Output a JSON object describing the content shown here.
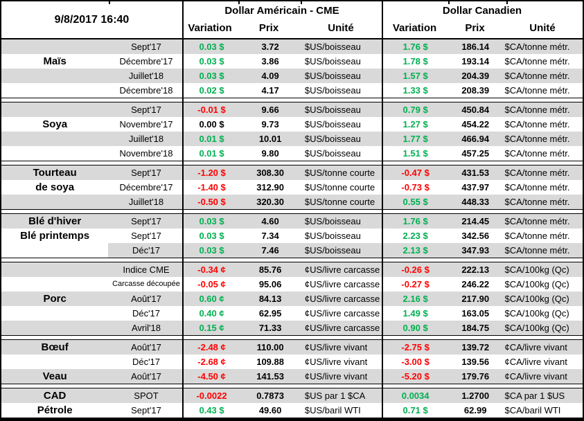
{
  "header": {
    "date": "9/8/2017 16:40",
    "us_title": "Dollar Américain - CME",
    "ca_title": "Dollar Canadien",
    "columns": {
      "variation": "Variation",
      "prix": "Prix",
      "unite": "Unité"
    }
  },
  "colors": {
    "positive": "#00B050",
    "negative": "#FF0000",
    "neutral": "#000000",
    "row_shade": "#D9D9D9"
  },
  "sections": [
    {
      "rows": [
        {
          "commodity": "",
          "contract": "Sept'17",
          "shade": "gray",
          "us": {
            "variation": "0.03 $",
            "color": "positive",
            "prix": "3.72",
            "unit": "$US/boisseau"
          },
          "ca": {
            "variation": "1.76 $",
            "color": "positive",
            "prix": "186.14",
            "unit": "$CA/tonne métr."
          }
        },
        {
          "commodity": "Maïs",
          "contract": "Décembre'17",
          "shade": "white",
          "us": {
            "variation": "0.03 $",
            "color": "positive",
            "prix": "3.86",
            "unit": "$US/boisseau"
          },
          "ca": {
            "variation": "1.78 $",
            "color": "positive",
            "prix": "193.14",
            "unit": "$CA/tonne métr."
          }
        },
        {
          "commodity": "",
          "contract": "Juillet'18",
          "shade": "gray",
          "us": {
            "variation": "0.03 $",
            "color": "positive",
            "prix": "4.09",
            "unit": "$US/boisseau"
          },
          "ca": {
            "variation": "1.57 $",
            "color": "positive",
            "prix": "204.39",
            "unit": "$CA/tonne métr."
          }
        },
        {
          "commodity": "",
          "contract": "Décembre'18",
          "shade": "white",
          "us": {
            "variation": "0.02 $",
            "color": "positive",
            "prix": "4.17",
            "unit": "$US/boisseau"
          },
          "ca": {
            "variation": "1.33 $",
            "color": "positive",
            "prix": "208.39",
            "unit": "$CA/tonne métr."
          }
        }
      ]
    },
    {
      "rows": [
        {
          "commodity": "",
          "contract": "Sept'17",
          "shade": "gray",
          "us": {
            "variation": "-0.01 $",
            "color": "negative",
            "prix": "9.66",
            "unit": "$US/boisseau"
          },
          "ca": {
            "variation": "0.79 $",
            "color": "positive",
            "prix": "450.84",
            "unit": "$CA/tonne métr."
          }
        },
        {
          "commodity": "Soya",
          "contract": "Novembre'17",
          "shade": "white",
          "us": {
            "variation": "0.00 $",
            "color": "neutral",
            "prix": "9.73",
            "unit": "$US/boisseau"
          },
          "ca": {
            "variation": "1.27 $",
            "color": "positive",
            "prix": "454.22",
            "unit": "$CA/tonne métr."
          }
        },
        {
          "commodity": "",
          "contract": "Juillet'18",
          "shade": "gray",
          "us": {
            "variation": "0.01 $",
            "color": "positive",
            "prix": "10.01",
            "unit": "$US/boisseau"
          },
          "ca": {
            "variation": "1.77 $",
            "color": "positive",
            "prix": "466.94",
            "unit": "$CA/tonne métr."
          }
        },
        {
          "commodity": "",
          "contract": "Novembre'18",
          "shade": "white",
          "us": {
            "variation": "0.01 $",
            "color": "positive",
            "prix": "9.80",
            "unit": "$US/boisseau"
          },
          "ca": {
            "variation": "1.51 $",
            "color": "positive",
            "prix": "457.25",
            "unit": "$CA/tonne métr."
          }
        }
      ]
    },
    {
      "rows": [
        {
          "commodity": "Tourteau",
          "contract": "Sept'17",
          "shade": "gray",
          "us": {
            "variation": "-1.20 $",
            "color": "negative",
            "prix": "308.30",
            "unit": "$US/tonne courte"
          },
          "ca": {
            "variation": "-0.47 $",
            "color": "negative",
            "prix": "431.53",
            "unit": "$CA/tonne métr."
          }
        },
        {
          "commodity": "de soya",
          "contract": "Décembre'17",
          "shade": "white",
          "us": {
            "variation": "-1.40 $",
            "color": "negative",
            "prix": "312.90",
            "unit": "$US/tonne courte"
          },
          "ca": {
            "variation": "-0.73 $",
            "color": "negative",
            "prix": "437.97",
            "unit": "$CA/tonne métr."
          }
        },
        {
          "commodity": "",
          "contract": "Juillet'18",
          "shade": "gray",
          "us": {
            "variation": "-0.50 $",
            "color": "negative",
            "prix": "320.30",
            "unit": "$US/tonne courte"
          },
          "ca": {
            "variation": "0.55 $",
            "color": "positive",
            "prix": "448.33",
            "unit": "$CA/tonne métr."
          }
        }
      ]
    },
    {
      "rows": [
        {
          "commodity": "Blé d'hiver",
          "contract": "Sept'17",
          "shade": "gray",
          "us": {
            "variation": "0.03 $",
            "color": "positive",
            "prix": "4.60",
            "unit": "$US/boisseau"
          },
          "ca": {
            "variation": "1.76 $",
            "color": "positive",
            "prix": "214.45",
            "unit": "$CA/tonne métr."
          }
        },
        {
          "commodity": "Blé printemps",
          "contract": "Sept'17",
          "shade": "white",
          "us": {
            "variation": "0.03 $",
            "color": "positive",
            "prix": "7.34",
            "unit": "$US/boisseau"
          },
          "ca": {
            "variation": "2.23 $",
            "color": "positive",
            "prix": "342.56",
            "unit": "$CA/tonne métr."
          }
        },
        {
          "commodity": "",
          "contract": "Déc'17",
          "shade": "partial",
          "us": {
            "variation": "0.03 $",
            "color": "positive",
            "prix": "7.46",
            "unit": "$US/boisseau"
          },
          "ca": {
            "variation": "2.13 $",
            "color": "positive",
            "prix": "347.93",
            "unit": "$CA/tonne métr."
          }
        }
      ]
    },
    {
      "rows": [
        {
          "commodity": "",
          "contract": "Indice CME",
          "shade": "gray",
          "us": {
            "variation": "-0.34 ¢",
            "color": "negative",
            "prix": "85.76",
            "unit": "¢US/livre carcasse"
          },
          "ca": {
            "variation": "-0.26 $",
            "color": "negative",
            "prix": "222.13",
            "unit": "$CA/100kg (Qc)"
          }
        },
        {
          "commodity": "",
          "contract": "Carcasse découpée",
          "contract_small": true,
          "shade": "white",
          "us": {
            "variation": "-0.05 ¢",
            "color": "negative",
            "prix": "95.06",
            "unit": "¢US/livre carcasse"
          },
          "ca": {
            "variation": "-0.27 $",
            "color": "negative",
            "prix": "246.22",
            "unit": "$CA/100kg (Qc)"
          }
        },
        {
          "commodity": "Porc",
          "contract": "Août'17",
          "shade": "gray",
          "us": {
            "variation": "0.60 ¢",
            "color": "positive",
            "prix": "84.13",
            "unit": "¢US/livre carcasse"
          },
          "ca": {
            "variation": "2.16 $",
            "color": "positive",
            "prix": "217.90",
            "unit": "$CA/100kg (Qc)"
          }
        },
        {
          "commodity": "",
          "contract": "Déc'17",
          "shade": "white",
          "us": {
            "variation": "0.40 ¢",
            "color": "positive",
            "prix": "62.95",
            "unit": "¢US/livre carcasse"
          },
          "ca": {
            "variation": "1.49 $",
            "color": "positive",
            "prix": "163.05",
            "unit": "$CA/100kg (Qc)"
          }
        },
        {
          "commodity": "",
          "contract": "Avril'18",
          "shade": "gray",
          "us": {
            "variation": "0.15 ¢",
            "color": "positive",
            "prix": "71.33",
            "unit": "¢US/livre carcasse"
          },
          "ca": {
            "variation": "0.90 $",
            "color": "positive",
            "prix": "184.75",
            "unit": "$CA/100kg (Qc)"
          }
        }
      ]
    },
    {
      "rows": [
        {
          "commodity": "Bœuf",
          "contract": "Août'17",
          "shade": "gray",
          "us": {
            "variation": "-2.48 ¢",
            "color": "negative",
            "prix": "110.00",
            "unit": "¢US/livre vivant"
          },
          "ca": {
            "variation": "-2.75 $",
            "color": "negative",
            "prix": "139.72",
            "unit": "¢CA/livre vivant"
          }
        },
        {
          "commodity": "",
          "contract": "Déc'17",
          "shade": "white",
          "us": {
            "variation": "-2.68 ¢",
            "color": "negative",
            "prix": "109.88",
            "unit": "¢US/livre vivant"
          },
          "ca": {
            "variation": "-3.00 $",
            "color": "negative",
            "prix": "139.56",
            "unit": "¢CA/livre vivant"
          }
        },
        {
          "commodity": "Veau",
          "contract": "Août'17",
          "shade": "gray",
          "us": {
            "variation": "-4.50 ¢",
            "color": "negative",
            "prix": "141.53",
            "unit": "¢US/livre vivant"
          },
          "ca": {
            "variation": "-5.20 $",
            "color": "negative",
            "prix": "179.76",
            "unit": "¢CA/livre vivant"
          }
        }
      ]
    },
    {
      "rows": [
        {
          "commodity": "CAD",
          "contract": "SPOT",
          "shade": "gray",
          "us": {
            "variation": "-0.0022",
            "color": "negative",
            "prix": "0.7873",
            "unit": "$US par 1 $CA"
          },
          "ca": {
            "variation": "0.0034",
            "color": "positive",
            "prix": "1.2700",
            "unit": "$CA par 1 $US"
          }
        },
        {
          "commodity": "Pétrole",
          "contract": "Sept'17",
          "shade": "white",
          "us": {
            "variation": "0.43 $",
            "color": "positive",
            "prix": "49.60",
            "unit": "$US/baril WTI"
          },
          "ca": {
            "variation": "0.71 $",
            "color": "positive",
            "prix": "62.99",
            "unit": "$CA/baril WTI"
          }
        }
      ]
    }
  ]
}
